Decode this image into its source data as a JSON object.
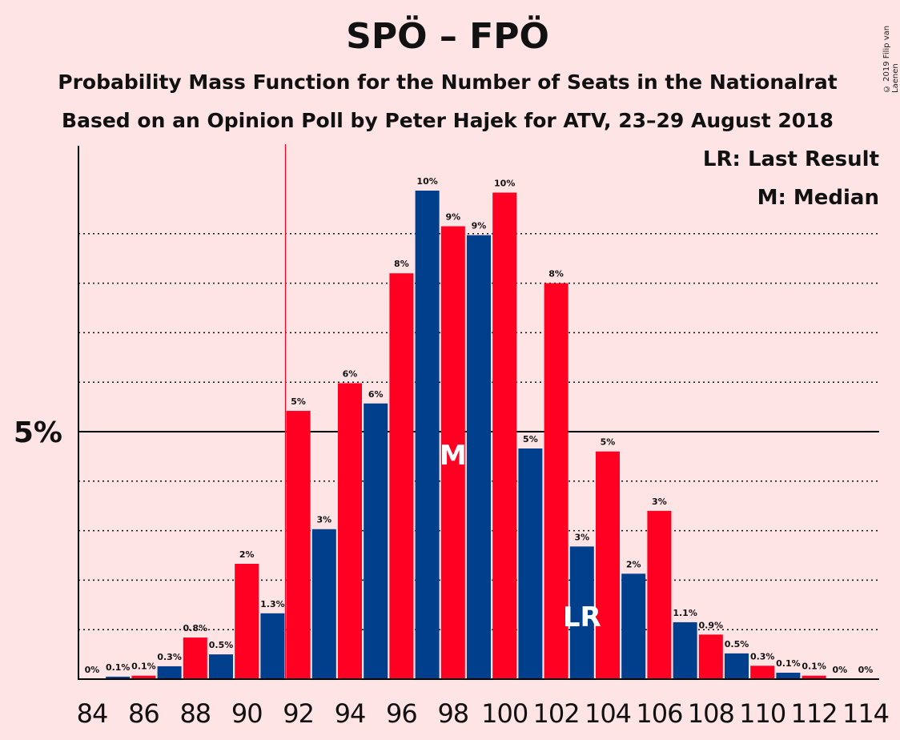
{
  "title": "SPÖ – FPÖ",
  "subtitle_1": "Probability Mass Function for the Number of Seats in the Nationalrat",
  "subtitle_2": "Based on an Opinion Poll by Peter Hajek for ATV, 23–29 August 2018",
  "copyright": "© 2019 Filip van Laenen",
  "legend": {
    "last_result": "LR: Last Result",
    "median": "M: Median"
  },
  "colors": {
    "background": "#FFE4E6",
    "red": "#FF0022",
    "blue": "#003F8C",
    "last_result_line": "#FF0022"
  },
  "chart_data": {
    "type": "bar",
    "x": [
      84,
      85,
      86,
      87,
      88,
      89,
      90,
      91,
      92,
      93,
      94,
      95,
      96,
      97,
      98,
      99,
      100,
      101,
      102,
      103,
      104,
      105,
      106,
      107,
      108,
      109,
      110,
      111,
      112,
      113,
      114
    ],
    "values": [
      0,
      0.05,
      0.07,
      0.26,
      0.84,
      0.5,
      2.33,
      1.33,
      5.42,
      3.03,
      5.98,
      5.57,
      8.2,
      9.87,
      9.15,
      8.97,
      9.83,
      4.66,
      8.0,
      2.68,
      4.6,
      2.13,
      3.4,
      1.15,
      0.9,
      0.52,
      0.27,
      0.13,
      0.07,
      0,
      0
    ],
    "labels": [
      "0%",
      "0.1%",
      "0.1%",
      "0.3%",
      "0.8%",
      "0.5%",
      "2%",
      "1.3%",
      "5%",
      "3%",
      "6%",
      "6%",
      "8%",
      "10%",
      "9%",
      "9%",
      "10%",
      "5%",
      "8%",
      "3%",
      "5%",
      "2%",
      "3%",
      "1.1%",
      "0.9%",
      "0.5%",
      "0.3%",
      "0.1%",
      "0.1%",
      "0%",
      "0%"
    ],
    "bar_colors": [
      "blue",
      "blue",
      "red",
      "blue",
      "red",
      "blue",
      "red",
      "blue",
      "red",
      "blue",
      "red",
      "blue",
      "red",
      "blue",
      "red",
      "blue",
      "red",
      "blue",
      "red",
      "blue",
      "red",
      "blue",
      "red",
      "blue",
      "red",
      "blue",
      "red",
      "blue",
      "red",
      "blue",
      "red"
    ],
    "x_tick_labels": [
      "84",
      "86",
      "88",
      "90",
      "92",
      "94",
      "96",
      "98",
      "100",
      "102",
      "104",
      "106",
      "108",
      "110",
      "112",
      "114"
    ],
    "y_tick_label": "5%",
    "y_tick_value": 5,
    "gridlines": [
      1,
      2,
      3,
      4,
      6,
      7,
      8,
      9
    ],
    "ylim": [
      0,
      10.8
    ],
    "last_result_x": 91.5,
    "median_x": 98,
    "median_marker": "M",
    "last_result_marker_x": 103,
    "last_result_marker": "LR"
  }
}
